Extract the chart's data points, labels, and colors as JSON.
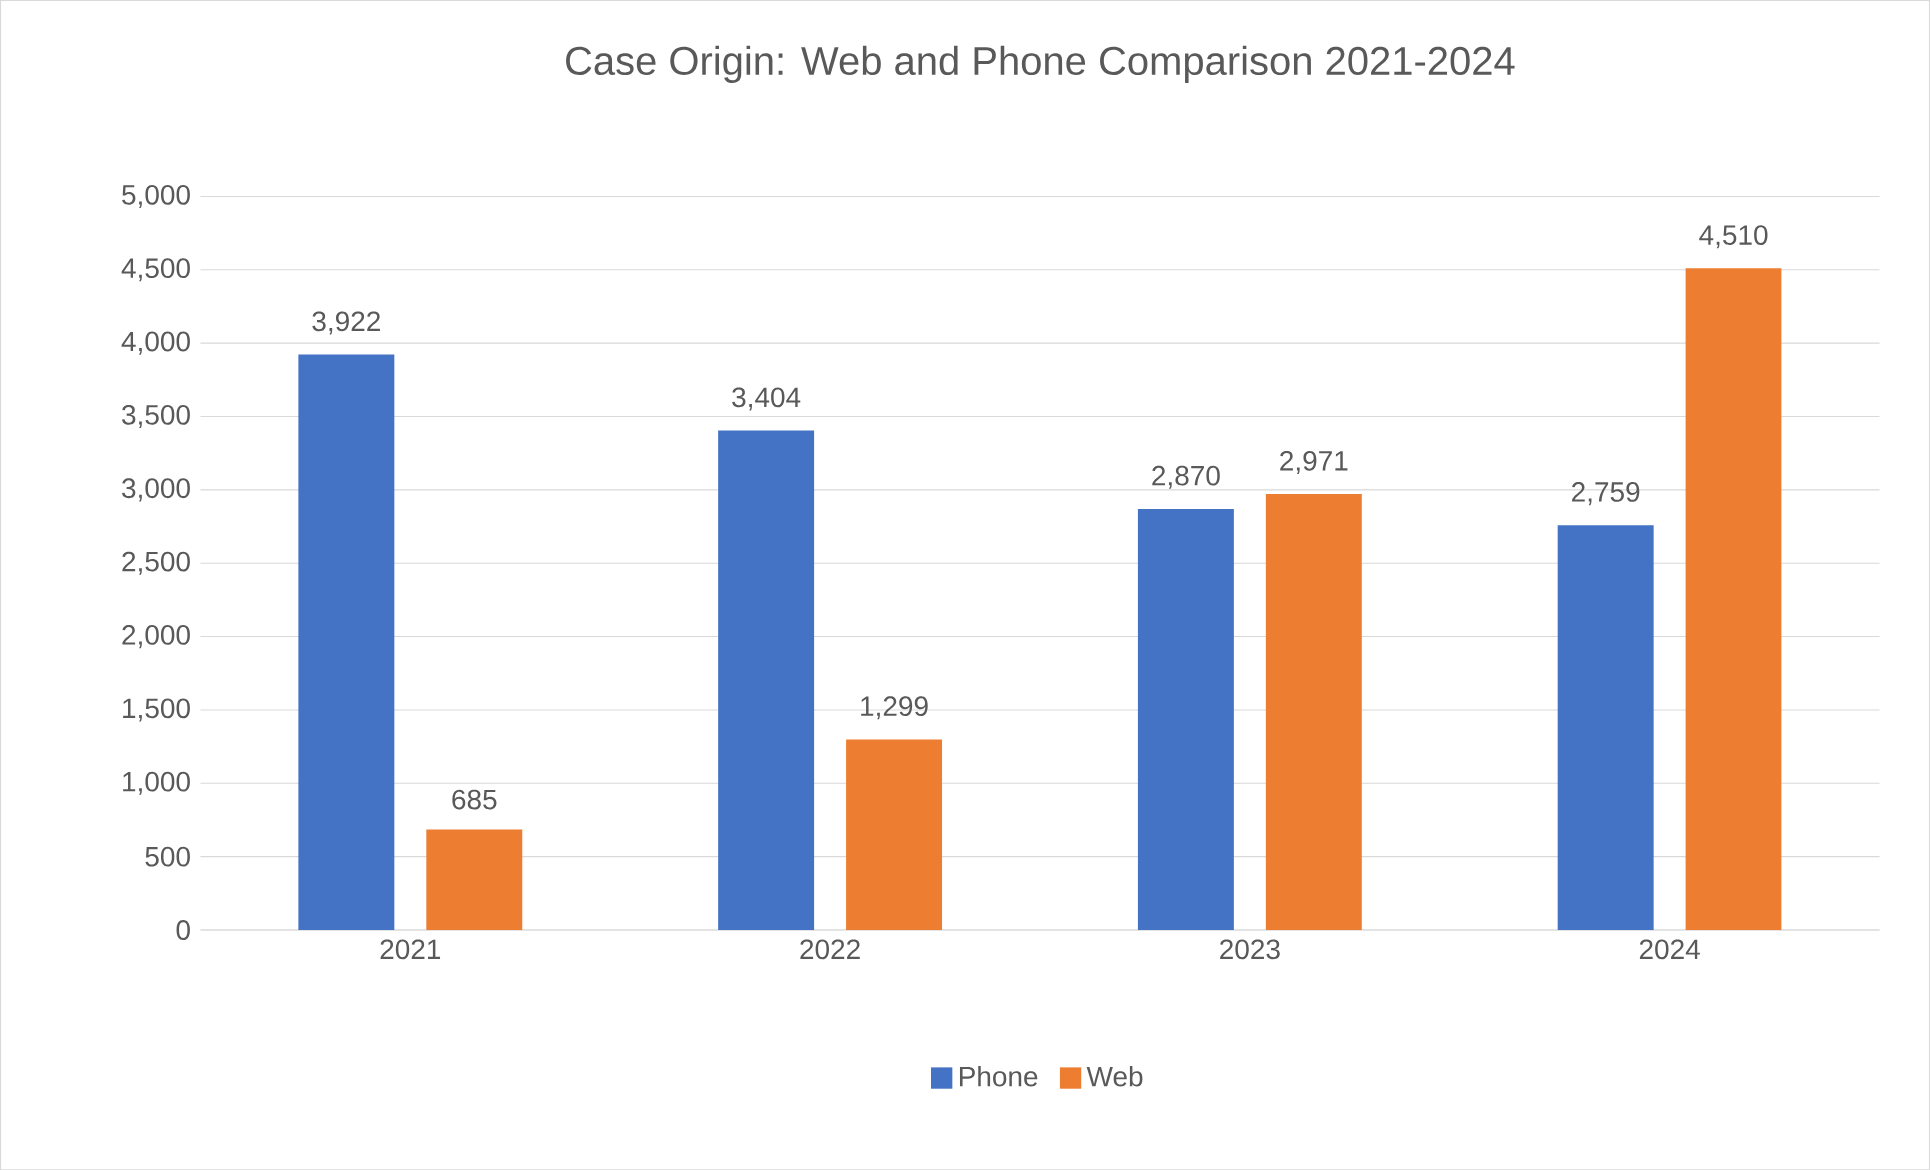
{
  "chart_data": {
    "type": "bar",
    "title": "Case Origin: Web and Phone Comparison 2021-2024",
    "categories": [
      "2021",
      "2022",
      "2023",
      "2024"
    ],
    "series": [
      {
        "name": "Phone",
        "color": "#4472c4",
        "values": [
          3922,
          3404,
          2870,
          2759
        ],
        "value_labels": [
          "3,922",
          "3,404",
          "2,870",
          "2,759"
        ]
      },
      {
        "name": "Web",
        "color": "#ed7d31",
        "values": [
          685,
          1299,
          2971,
          4510
        ],
        "value_labels": [
          "685",
          "1,299",
          "2,971",
          "4,510"
        ]
      }
    ],
    "ylim": [
      0,
      5000
    ],
    "yticks": [
      0,
      {
        "value": 500,
        "label": "500"
      },
      {
        "value": 1000,
        "label": "1,000"
      },
      {
        "value": 1500,
        "label": "1,500"
      },
      {
        "value": 2000,
        "label": "2,000"
      },
      {
        "value": 2500,
        "label": "2,500"
      },
      {
        "value": 3000,
        "label": "3,000"
      },
      {
        "value": 3500,
        "label": "3,500"
      },
      {
        "value": 4000,
        "label": "4,000"
      },
      {
        "value": 4500,
        "label": "4,500"
      },
      {
        "value": 5000,
        "label": "5,000"
      }
    ],
    "grid": "y",
    "legend": "bottom"
  }
}
